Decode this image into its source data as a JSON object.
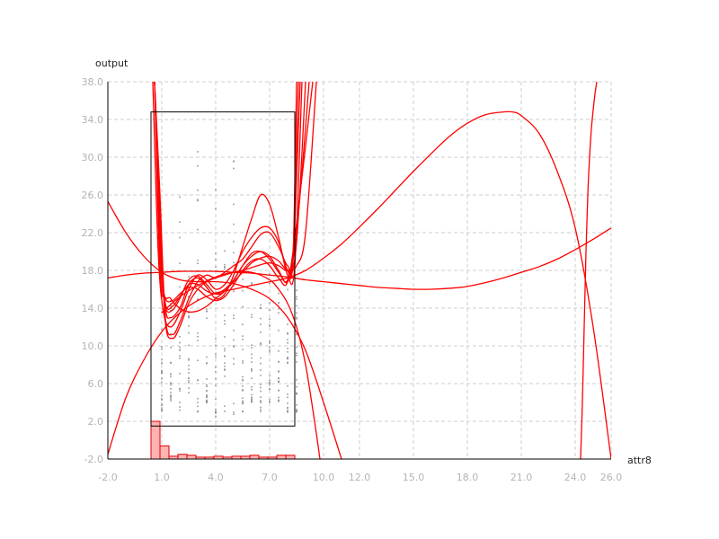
{
  "chart_data": {
    "type": "line",
    "xlabel": "attr8",
    "ylabel": "output",
    "xlim": [
      -2.0,
      26.0
    ],
    "ylim": [
      -2.0,
      38.0
    ],
    "x_ticks": [
      "-2.0",
      "1.0",
      "4.0",
      "7.0",
      "10.0",
      "12.0",
      "15.0",
      "18.0",
      "21.0",
      "24.0",
      "26.0"
    ],
    "y_ticks": [
      "-2.0",
      "2.0",
      "6.0",
      "10.0",
      "14.0",
      "18.0",
      "22.0",
      "26.0",
      "30.0",
      "34.0",
      "38.0"
    ],
    "grid": true,
    "colors": {
      "curves": "#ff0000",
      "points": "#808080",
      "box": "#000000",
      "histogram_fill": "#ffb3b3",
      "histogram_edge": "#e00000",
      "grid": "#cccccc"
    },
    "box": {
      "x_min": 0.4,
      "x_max": 8.4,
      "y_min": 1.5,
      "y_max": 34.8
    },
    "histogram": {
      "bin_starts": [
        0.4,
        0.9,
        1.4,
        1.9,
        2.4,
        2.9,
        3.4,
        3.9,
        4.4,
        4.9,
        5.4,
        5.9,
        6.4,
        6.9,
        7.4,
        7.9
      ],
      "bin_width": 0.5,
      "counts": [
        2.0,
        -0.6,
        -1.7,
        -1.5,
        -1.6,
        -1.8,
        -1.8,
        -1.7,
        -1.8,
        -1.7,
        -1.7,
        -1.6,
        -1.8,
        -1.8,
        -1.6,
        -1.6
      ]
    },
    "points": {
      "columns": [
        1.0,
        1.5,
        2.0,
        2.5,
        3.0,
        3.5,
        4.0,
        4.5,
        5.0,
        5.5,
        6.0,
        6.5,
        7.0,
        7.5,
        8.0,
        8.5
      ],
      "ranges": [
        [
          3,
          16
        ],
        [
          4,
          15
        ],
        [
          3,
          27.5
        ],
        [
          5,
          18
        ],
        [
          3,
          31
        ],
        [
          4,
          17
        ],
        [
          2.5,
          29.5
        ],
        [
          3,
          21
        ],
        [
          2.5,
          30
        ],
        [
          3,
          18
        ],
        [
          4,
          19
        ],
        [
          3,
          15
        ],
        [
          3.5,
          18.5
        ],
        [
          4,
          16
        ],
        [
          3,
          21
        ],
        [
          3,
          16
        ]
      ]
    },
    "series": [
      {
        "x": [
          0.6,
          0.9,
          1.2,
          1.6,
          2.0,
          2.5,
          3.0,
          3.5,
          4.0,
          4.5,
          5.0,
          5.5,
          6.0,
          6.5,
          7.0,
          7.5,
          8.0,
          8.3,
          8.5
        ],
        "values": [
          38,
          24,
          12.5,
          10.8,
          12,
          14.5,
          16,
          16.8,
          17.2,
          17.5,
          17.8,
          18,
          18.3,
          18.6,
          18.8,
          18.5,
          18,
          19.5,
          38
        ]
      },
      {
        "x": [
          0.6,
          0.9,
          1.2,
          1.6,
          2.0,
          2.5,
          3.0,
          3.5,
          4.0,
          4.5,
          5.0,
          5.5,
          6.0,
          6.5,
          7.0,
          7.5,
          8.0,
          8.3,
          8.6
        ],
        "values": [
          38,
          26,
          13,
          11.2,
          12.5,
          15,
          16.8,
          17.5,
          17.2,
          17.8,
          18.5,
          19.2,
          20.5,
          21.8,
          22,
          20.5,
          18.5,
          19.5,
          38
        ]
      },
      {
        "x": [
          0.5,
          0.8,
          1.1,
          1.5,
          2.0,
          2.5,
          3.0,
          3.5,
          4.0,
          4.5,
          5.0,
          5.5,
          6.0,
          6.5,
          7.0,
          7.5,
          8.0,
          8.3,
          8.7
        ],
        "values": [
          38,
          20,
          13.5,
          12,
          13.5,
          16,
          17.5,
          17,
          16,
          16.5,
          18,
          20,
          21.5,
          22.5,
          22.5,
          21,
          18,
          19,
          38
        ]
      },
      {
        "x": [
          0.6,
          0.9,
          1.2,
          1.5,
          2.0,
          2.5,
          3.0,
          3.5,
          4.0,
          4.5,
          5.0,
          5.5,
          6.0,
          6.5,
          7.0,
          7.5,
          8.0,
          8.4,
          8.8
        ],
        "values": [
          38,
          22,
          14,
          13,
          14,
          16.5,
          17.2,
          16.2,
          15,
          15.5,
          17.5,
          20.5,
          23.5,
          26,
          25,
          21.5,
          17.5,
          18.5,
          38
        ]
      },
      {
        "x": [
          0.6,
          0.9,
          1.2,
          1.6,
          2.0,
          2.5,
          3.0,
          3.5,
          4.0,
          4.5,
          5.0,
          5.5,
          6.0,
          6.5,
          7.0,
          7.5,
          8.0,
          8.5,
          9.0
        ],
        "values": [
          38,
          20,
          14.2,
          13.8,
          15,
          17,
          17.4,
          16.5,
          15.5,
          15.8,
          17,
          18.5,
          19.5,
          20,
          19.5,
          18,
          16.8,
          21,
          38
        ]
      },
      {
        "x": [
          0.6,
          0.9,
          1.2,
          1.6,
          2.0,
          2.5,
          3.0,
          3.5,
          4.0,
          4.5,
          5.0,
          5.5,
          6.0,
          6.5,
          7.0,
          7.5,
          8.0,
          8.5,
          9.2
        ],
        "values": [
          38,
          21,
          14.5,
          14.2,
          15.2,
          16.5,
          16.5,
          15.8,
          15.5,
          16,
          17,
          18.5,
          19.8,
          20,
          19.2,
          17.8,
          17,
          22,
          38
        ]
      },
      {
        "x": [
          0.6,
          0.9,
          1.2,
          1.6,
          2.0,
          2.5,
          3.0,
          3.5,
          4.0,
          4.5,
          5.0,
          5.5,
          6.0,
          6.5,
          7.0,
          7.5,
          8.0,
          8.5,
          9.4
        ],
        "values": [
          38,
          18,
          15,
          14.8,
          15.5,
          16.2,
          16,
          15.2,
          14.8,
          15.2,
          16.5,
          18,
          19,
          19.2,
          18.5,
          17.2,
          16.8,
          23,
          38
        ]
      },
      {
        "x": [
          0.6,
          1.0,
          1.5,
          2.0,
          2.5,
          3.0,
          3.5,
          4.0,
          4.5,
          5.0,
          5.5,
          6.0,
          6.5,
          7.0,
          7.5,
          8.0,
          8.5,
          9.0,
          9.6
        ],
        "values": [
          38,
          17.5,
          15,
          14,
          13.6,
          13.7,
          14.2,
          15,
          15.8,
          16.8,
          17.8,
          18.8,
          19.3,
          19.5,
          19,
          18,
          18.5,
          22,
          38
        ]
      },
      {
        "x": [
          -2,
          -1,
          0,
          1,
          2,
          3,
          4,
          5,
          6,
          7,
          8,
          9,
          10,
          11,
          12,
          13,
          14,
          15,
          16,
          17,
          18,
          19,
          20,
          21,
          22,
          23,
          24,
          25,
          26
        ],
        "values": [
          17.2,
          17.5,
          17.7,
          17.8,
          17.9,
          17.9,
          17.9,
          17.8,
          17.7,
          17.5,
          17.3,
          17,
          16.8,
          16.6,
          16.4,
          16.2,
          16.1,
          16,
          16,
          16.1,
          16.3,
          16.7,
          17.2,
          17.8,
          18.4,
          19.2,
          20.2,
          21.3,
          22.5
        ]
      },
      {
        "x": [
          -2,
          -1,
          0,
          1,
          2,
          3,
          4,
          5,
          6,
          7,
          8,
          9,
          10,
          11,
          12,
          13,
          14,
          15,
          16,
          17,
          18,
          19,
          20,
          20.5,
          21,
          22,
          23,
          24,
          25,
          26
        ],
        "values": [
          -1.5,
          4.5,
          8.5,
          11.5,
          13.5,
          14.8,
          15.6,
          16,
          16.4,
          16.8,
          17.2,
          18,
          19.3,
          20.8,
          22.6,
          24.5,
          26.5,
          28.5,
          30.4,
          32.2,
          33.6,
          34.5,
          34.8,
          34.8,
          34.4,
          32.5,
          28.5,
          22.5,
          12,
          -2
        ]
      },
      {
        "x": [
          -2,
          -1,
          0,
          1,
          2,
          3,
          4,
          5,
          6,
          7,
          8,
          9,
          10,
          11
        ],
        "values": [
          25.3,
          22,
          19.5,
          17.8,
          17,
          16.8,
          16.8,
          16.6,
          16,
          15,
          13,
          9.5,
          4,
          -2
        ]
      },
      {
        "x": [
          1.0,
          2.0,
          3.0,
          4.0,
          5.0,
          6.0,
          7.0,
          7.5,
          8.0,
          8.5,
          9.0,
          9.5,
          9.8
        ],
        "values": [
          13.5,
          15.2,
          16.4,
          17.3,
          17.8,
          17.8,
          17,
          16,
          14.5,
          12,
          8,
          2,
          -2
        ]
      },
      {
        "x": [
          24.3,
          24.4,
          24.5,
          24.6,
          24.7,
          24.8,
          24.9,
          25.0,
          25.1,
          25.2
        ],
        "values": [
          -2,
          4,
          12,
          20,
          26,
          30,
          33,
          35,
          36.7,
          38
        ]
      }
    ]
  }
}
